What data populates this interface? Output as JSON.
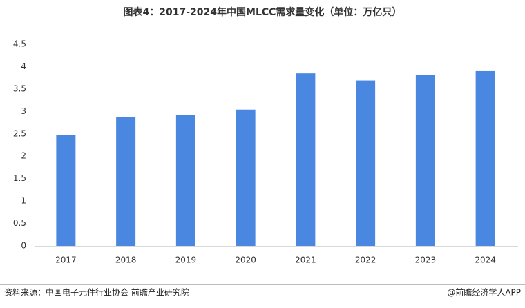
{
  "chart_data": {
    "type": "bar",
    "title": "图表4：2017-2024年中国MLCC需求量变化（单位：万亿只）",
    "categories": [
      "2017",
      "2018",
      "2019",
      "2020",
      "2021",
      "2022",
      "2023",
      "2024"
    ],
    "values": [
      2.47,
      2.88,
      2.92,
      3.04,
      3.85,
      3.69,
      3.81,
      3.9
    ],
    "color": "#4a87e0",
    "ylim": [
      0,
      4.5
    ],
    "yticks": [
      0,
      0.5,
      1,
      1.5,
      2,
      2.5,
      3,
      3.5,
      4,
      4.5
    ],
    "grid": false,
    "source": "资料来源：中国电子元件行业协会 前瞻产业研究院",
    "credit": "@前瞻经济学人APP"
  }
}
